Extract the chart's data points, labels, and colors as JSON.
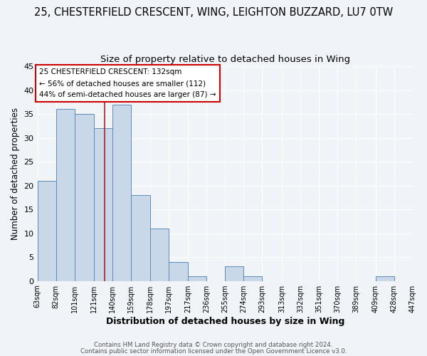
{
  "title": "25, CHESTERFIELD CRESCENT, WING, LEIGHTON BUZZARD, LU7 0TW",
  "subtitle": "Size of property relative to detached houses in Wing",
  "xlabel": "Distribution of detached houses by size in Wing",
  "ylabel": "Number of detached properties",
  "bar_color": "#c8d8e8",
  "bar_edge_color": "#5b8db8",
  "annotation_box_color": "#ffffff",
  "annotation_box_edge": "#cc0000",
  "annotation_line1": "25 CHESTERFIELD CRESCENT: 132sqm",
  "annotation_line2": "← 56% of detached houses are smaller (112)",
  "annotation_line3": "44% of semi-detached houses are larger (87) →",
  "bins": [
    63,
    82,
    101,
    121,
    140,
    159,
    178,
    197,
    217,
    236,
    255,
    274,
    293,
    313,
    332,
    351,
    370,
    389,
    409,
    428,
    447
  ],
  "counts": [
    21,
    36,
    35,
    32,
    37,
    18,
    11,
    4,
    1,
    0,
    3,
    1,
    0,
    0,
    0,
    0,
    0,
    0,
    1,
    0
  ],
  "ylim": [
    0,
    45
  ],
  "yticks": [
    0,
    5,
    10,
    15,
    20,
    25,
    30,
    35,
    40,
    45
  ],
  "footer1": "Contains HM Land Registry data © Crown copyright and database right 2024.",
  "footer2": "Contains public sector information licensed under the Open Government Licence v3.0.",
  "background_color": "#f0f4f8",
  "property_size": 132,
  "vline_color": "#aa2222",
  "title_fontsize": 10.5,
  "subtitle_fontsize": 9.5
}
